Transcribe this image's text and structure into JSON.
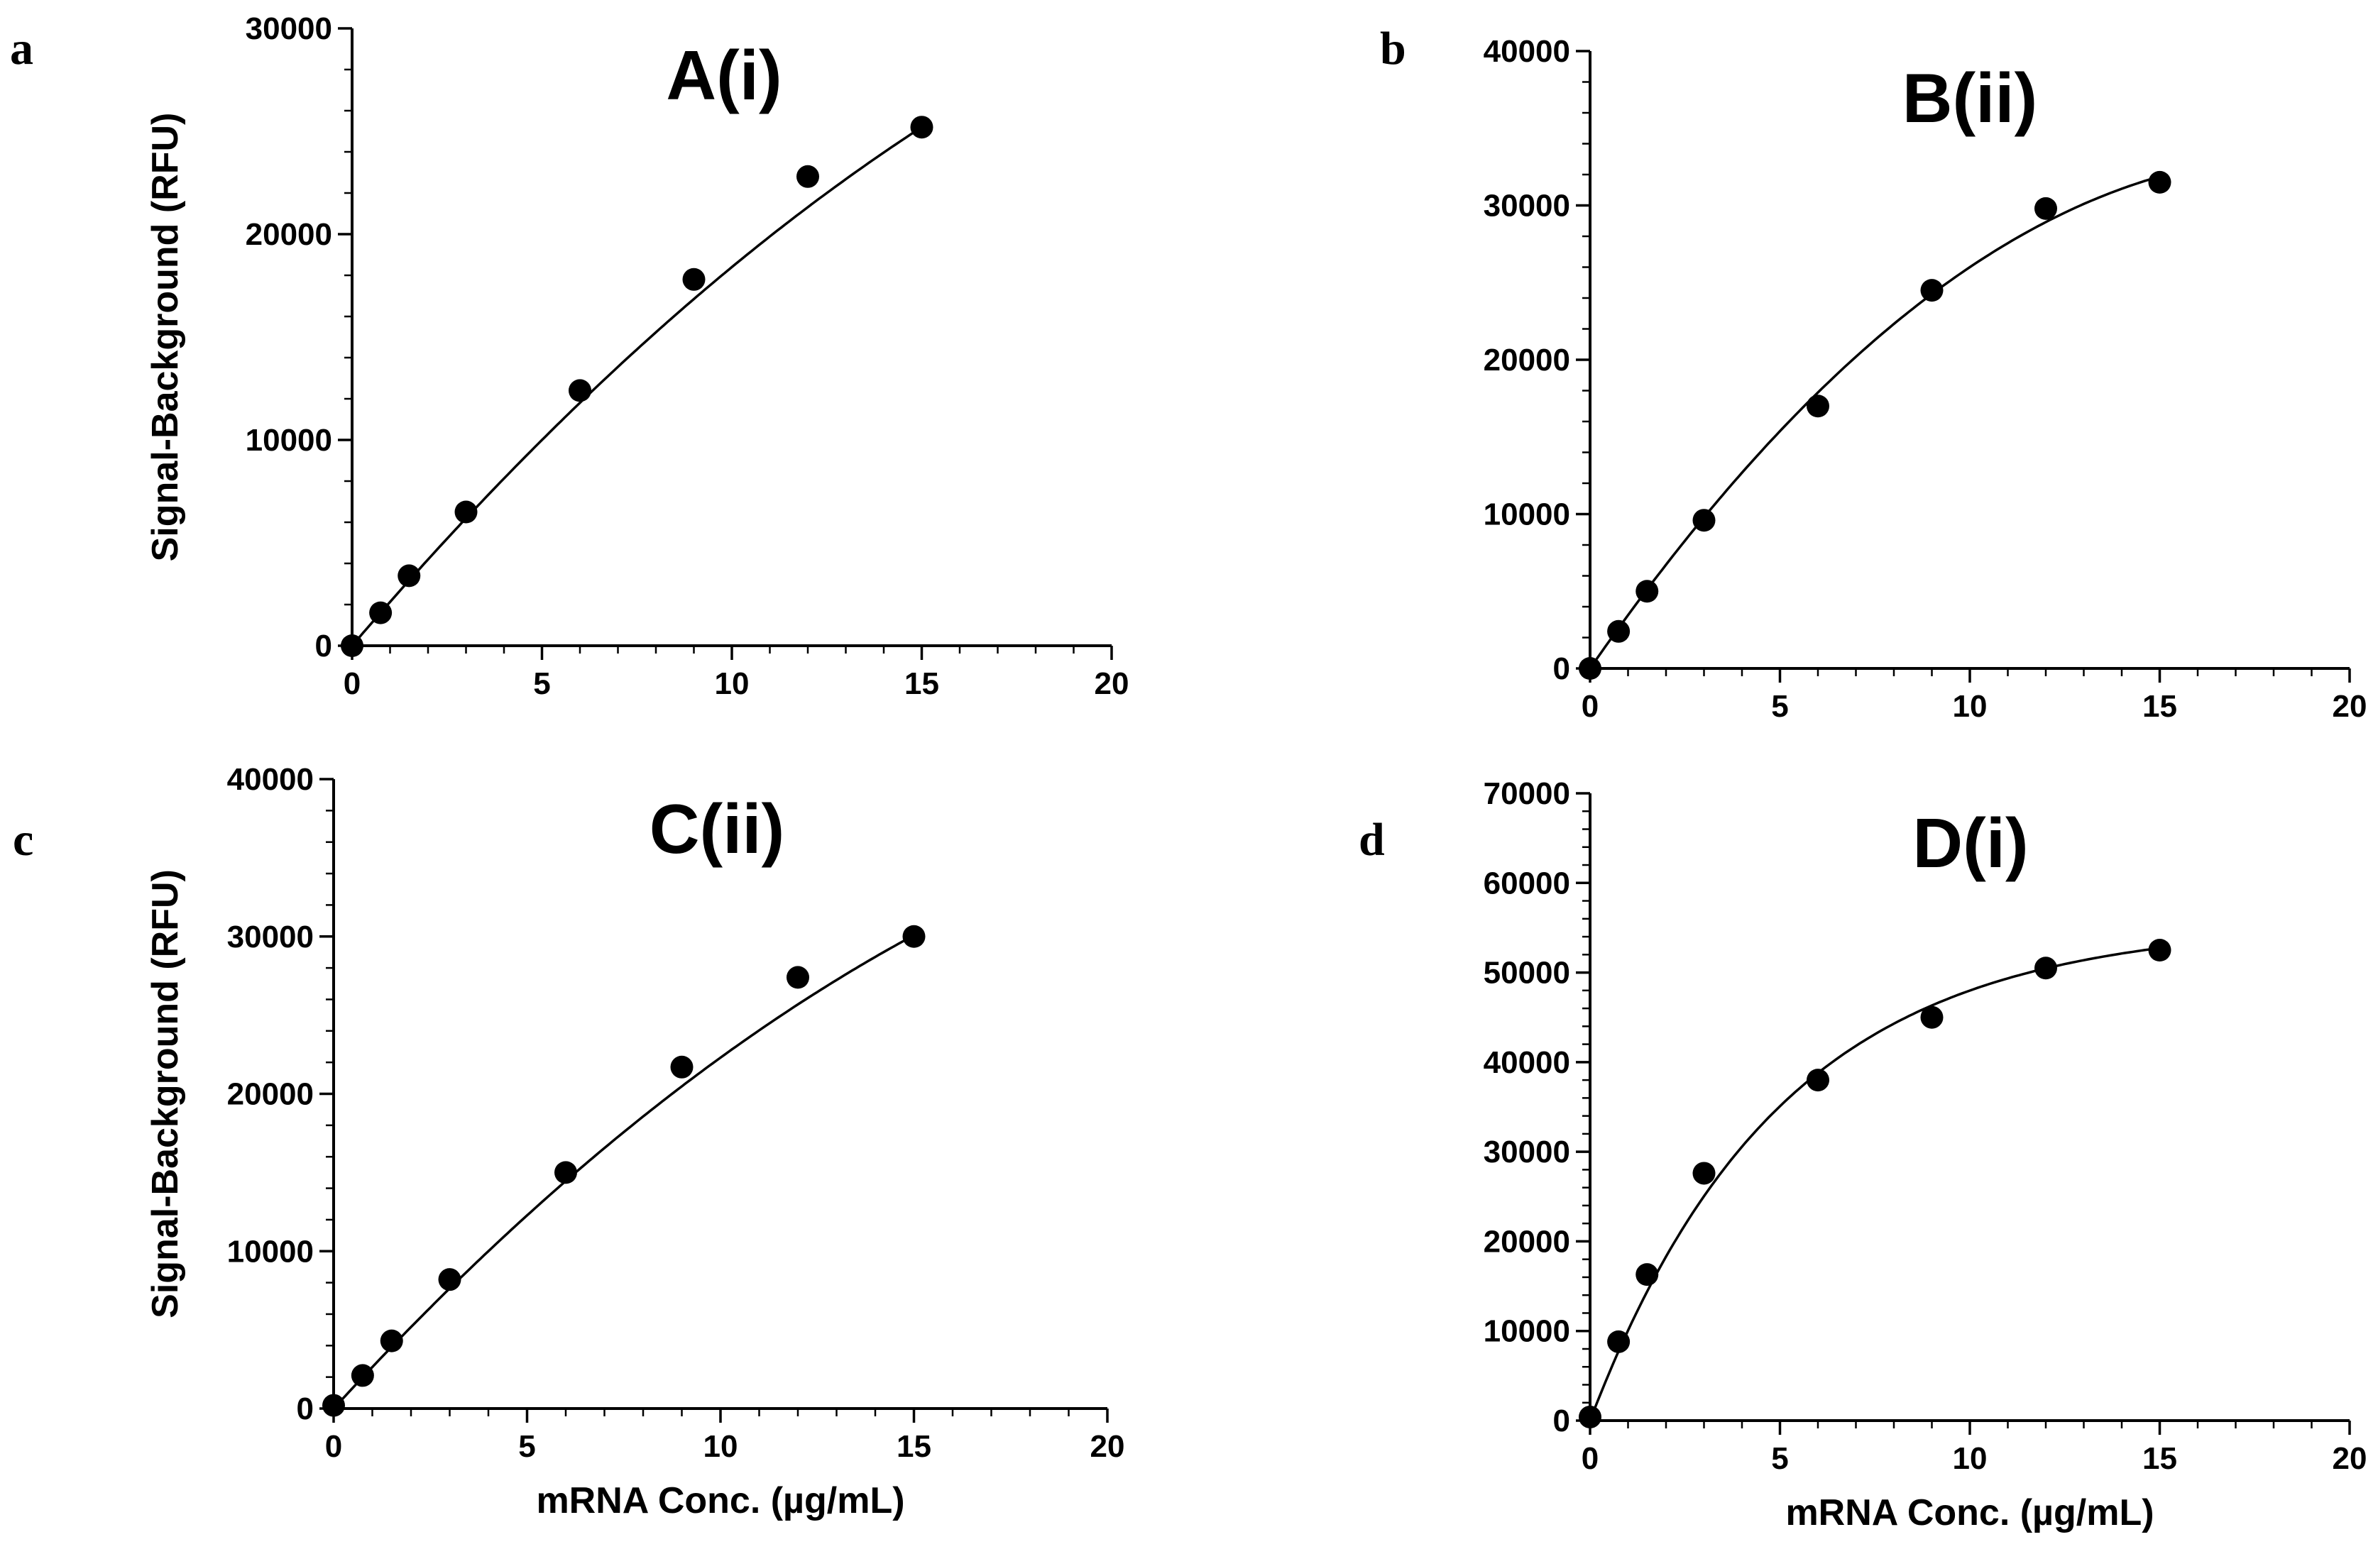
{
  "figure": {
    "marker_color": "#000000",
    "line_color": "#000000",
    "background": "#ffffff"
  },
  "chart_data": [
    {
      "type": "scatter",
      "panel_label": "a",
      "title": "A(i)",
      "xlabel": "",
      "ylabel": "Signal-Background (RFU)",
      "xlim": [
        0,
        20
      ],
      "ylim": [
        0,
        30000
      ],
      "x_ticks": [
        0,
        5,
        10,
        15,
        20
      ],
      "y_ticks": [
        0,
        10000,
        20000,
        30000
      ],
      "x_tick_labels": [
        "0",
        "5",
        "10",
        "15",
        "20"
      ],
      "y_tick_labels": [
        "0",
        "10000",
        "20000",
        "30000"
      ],
      "y_minor_step": 2000,
      "grid": false,
      "x": [
        0,
        0.75,
        1.5,
        3,
        6,
        9,
        12,
        15
      ],
      "y": [
        0,
        1600,
        3400,
        6500,
        12400,
        17800,
        22800,
        25200
      ],
      "fit": {
        "model": "quadratic",
        "a": -32,
        "b": 2160
      }
    },
    {
      "type": "scatter",
      "panel_label": "b",
      "title": "B(ii)",
      "xlabel": "",
      "ylabel": "",
      "xlim": [
        0,
        20
      ],
      "ylim": [
        0,
        40000
      ],
      "x_ticks": [
        0,
        5,
        10,
        15,
        20
      ],
      "y_ticks": [
        0,
        10000,
        20000,
        30000,
        40000
      ],
      "x_tick_labels": [
        "0",
        "5",
        "10",
        "15",
        "20"
      ],
      "y_tick_labels": [
        "0",
        "10000",
        "20000",
        "30000",
        "40000"
      ],
      "y_minor_step": 2000,
      "grid": false,
      "x": [
        0,
        0.75,
        1.5,
        3,
        6,
        9,
        12,
        15
      ],
      "y": [
        0,
        2400,
        5000,
        9600,
        17000,
        24500,
        29800,
        31500
      ],
      "fit": {
        "model": "quadratic",
        "a": -95,
        "b": 3550
      }
    },
    {
      "type": "scatter",
      "panel_label": "c",
      "title": "C(ii)",
      "xlabel": "mRNA Conc. (µg/mL)",
      "ylabel": "Signal-Background (RFU)",
      "xlim": [
        0,
        20
      ],
      "ylim": [
        0,
        40000
      ],
      "x_ticks": [
        0,
        5,
        10,
        15,
        20
      ],
      "y_ticks": [
        0,
        10000,
        20000,
        30000,
        40000
      ],
      "x_tick_labels": [
        "0",
        "5",
        "10",
        "15",
        "20"
      ],
      "y_tick_labels": [
        "0",
        "10000",
        "20000",
        "30000",
        "40000"
      ],
      "y_minor_step": 2000,
      "grid": false,
      "x": [
        0,
        0.75,
        1.5,
        3,
        6,
        9,
        12,
        15
      ],
      "y": [
        200,
        2100,
        4300,
        8200,
        15000,
        21700,
        27400,
        30000
      ],
      "fit": {
        "model": "quadratic",
        "a": -45,
        "b": 2680
      }
    },
    {
      "type": "scatter",
      "panel_label": "d",
      "title": "D(i)",
      "xlabel": "mRNA Conc. (µg/mL)",
      "ylabel": "",
      "xlim": [
        0,
        20
      ],
      "ylim": [
        0,
        70000
      ],
      "x_ticks": [
        0,
        5,
        10,
        15,
        20
      ],
      "y_ticks": [
        0,
        10000,
        20000,
        30000,
        40000,
        50000,
        60000,
        70000
      ],
      "x_tick_labels": [
        "0",
        "5",
        "10",
        "15",
        "20"
      ],
      "y_tick_labels": [
        "0",
        "10000",
        "20000",
        "30000",
        "40000",
        "50000",
        "60000",
        "70000"
      ],
      "y_minor_step": 2000,
      "grid": false,
      "x": [
        0,
        0.75,
        1.5,
        3,
        6,
        9,
        12,
        15
      ],
      "y": [
        400,
        8800,
        16300,
        27600,
        38000,
        45000,
        50500,
        52500
      ],
      "fit": {
        "model": "exponential",
        "ymax": 55500,
        "k": 0.2
      }
    }
  ]
}
